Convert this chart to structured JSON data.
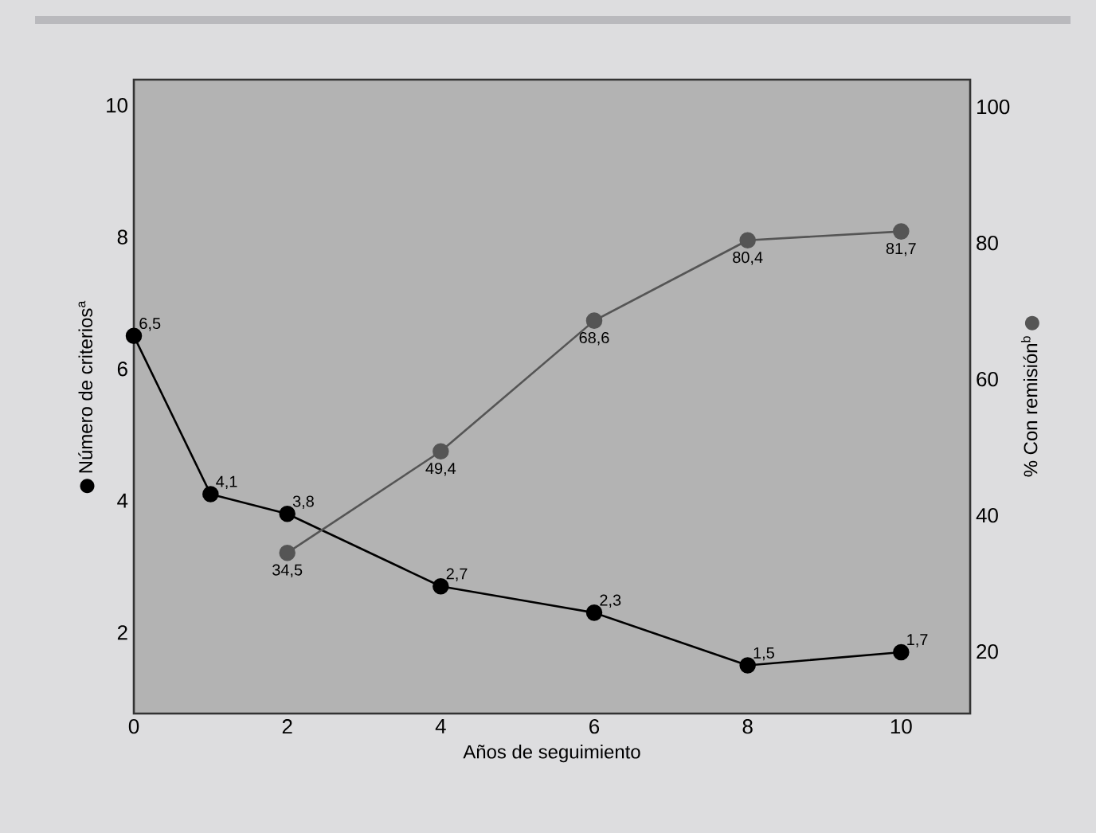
{
  "chart_data": {
    "type": "line",
    "xlabel": "Años de seguimiento",
    "ylabel": "Número de criterios$^{a}$",
    "y2label": "% Con remisión$^{b}$",
    "xlim": [
      0,
      10.9
    ],
    "xticks": [
      0,
      2,
      4,
      6,
      8,
      10
    ],
    "ylim": [
      0.77,
      10.39
    ],
    "yticks": [
      2,
      4,
      6,
      8,
      10
    ],
    "y2lim": [
      10.9,
      104
    ],
    "y2ticks": [
      20,
      40,
      60,
      80,
      100
    ],
    "marker": "circle",
    "line_style": "solid",
    "grid": false,
    "series": [
      {
        "color": "#000000",
        "x": [
          0,
          1,
          2,
          4,
          6,
          8,
          10
        ],
        "values": [
          6.5,
          4.1,
          3.8,
          2.7,
          2.3,
          1.5,
          1.7
        ],
        "value_labels": [
          "6,5",
          "4,1",
          "3,8",
          "2,7",
          "2,3",
          "1,5",
          "1,7"
        ]
      },
      {
        "color": "#555555",
        "axis": "y2",
        "x": [
          2,
          4,
          6,
          8,
          10
        ],
        "values": [
          34.5,
          49.4,
          68.6,
          80.4,
          81.7
        ],
        "value_labels": [
          "34,5",
          "49,4",
          "68,6",
          "80,4",
          "81,7"
        ]
      }
    ]
  }
}
